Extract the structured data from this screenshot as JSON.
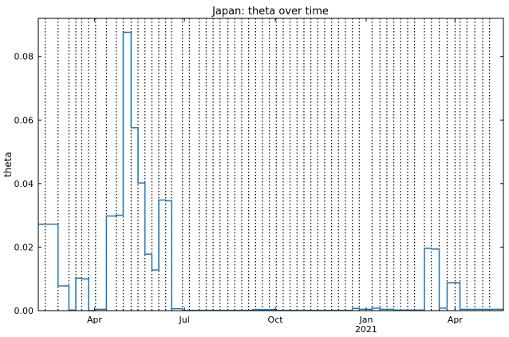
{
  "chart_data": {
    "type": "line",
    "title": "Japan: theta over time",
    "xlabel": "",
    "ylabel": "theta",
    "x_range": [
      "2020-02-04",
      "2021-05-20"
    ],
    "ylim": [
      0,
      0.092
    ],
    "y_ticks": [
      0.0,
      0.02,
      0.04,
      0.06,
      0.08
    ],
    "y_tick_labels": [
      "0.00",
      "0.02",
      "0.04",
      "0.06",
      "0.08"
    ],
    "x_ticks": [
      {
        "date": "2020-04-01",
        "label": "Apr",
        "sublabel": ""
      },
      {
        "date": "2020-07-01",
        "label": "Jul",
        "sublabel": ""
      },
      {
        "date": "2020-10-01",
        "label": "Oct",
        "sublabel": ""
      },
      {
        "date": "2021-01-01",
        "label": "Jan",
        "sublabel": "2021"
      },
      {
        "date": "2021-04-01",
        "label": "Apr",
        "sublabel": ""
      }
    ],
    "grid": false,
    "line_color": "#1f77b4",
    "breakpoint_line_color": "#000000",
    "series": [
      {
        "steps": [
          {
            "start": "2020-02-04",
            "end": "2020-02-24",
            "value": 0.0272
          },
          {
            "start": "2020-02-24",
            "end": "2020-03-06",
            "value": 0.0078
          },
          {
            "start": "2020-03-06",
            "end": "2020-03-13",
            "value": 0.0002
          },
          {
            "start": "2020-03-13",
            "end": "2020-03-19",
            "value": 0.0102
          },
          {
            "start": "2020-03-19",
            "end": "2020-03-26",
            "value": 0.01
          },
          {
            "start": "2020-03-26",
            "end": "2020-04-02",
            "value": 0.0
          },
          {
            "start": "2020-04-02",
            "end": "2020-04-13",
            "value": 0.0004
          },
          {
            "start": "2020-04-13",
            "end": "2020-04-23",
            "value": 0.0298
          },
          {
            "start": "2020-04-23",
            "end": "2020-04-30",
            "value": 0.03
          },
          {
            "start": "2020-04-30",
            "end": "2020-05-08",
            "value": 0.0876
          },
          {
            "start": "2020-05-08",
            "end": "2020-05-15",
            "value": 0.0576
          },
          {
            "start": "2020-05-15",
            "end": "2020-05-22",
            "value": 0.0402
          },
          {
            "start": "2020-05-22",
            "end": "2020-05-29",
            "value": 0.0178
          },
          {
            "start": "2020-05-29",
            "end": "2020-06-05",
            "value": 0.0128
          },
          {
            "start": "2020-06-05",
            "end": "2020-06-12",
            "value": 0.0348
          },
          {
            "start": "2020-06-12",
            "end": "2020-06-18",
            "value": 0.0346
          },
          {
            "start": "2020-06-18",
            "end": "2020-06-29",
            "value": 0.0006
          },
          {
            "start": "2020-06-29",
            "end": "2020-09-08",
            "value": 0.0001
          },
          {
            "start": "2020-09-08",
            "end": "2020-09-30",
            "value": 0.0003
          },
          {
            "start": "2020-09-30",
            "end": "2020-12-18",
            "value": 0.0001
          },
          {
            "start": "2020-12-18",
            "end": "2020-12-25",
            "value": 0.0007
          },
          {
            "start": "2020-12-25",
            "end": "2021-01-07",
            "value": 0.0004
          },
          {
            "start": "2021-01-07",
            "end": "2021-01-15",
            "value": 0.0008
          },
          {
            "start": "2021-01-15",
            "end": "2021-01-29",
            "value": 0.0004
          },
          {
            "start": "2021-01-29",
            "end": "2021-03-01",
            "value": 0.0002
          },
          {
            "start": "2021-03-01",
            "end": "2021-03-08",
            "value": 0.0196
          },
          {
            "start": "2021-03-08",
            "end": "2021-03-16",
            "value": 0.0194
          },
          {
            "start": "2021-03-16",
            "end": "2021-03-24",
            "value": 0.0008
          },
          {
            "start": "2021-03-24",
            "end": "2021-04-01",
            "value": 0.0088
          },
          {
            "start": "2021-04-01",
            "end": "2021-04-06",
            "value": 0.0088
          },
          {
            "start": "2021-04-06",
            "end": "2021-05-20",
            "value": 0.0004
          }
        ]
      }
    ],
    "breakpoints": [
      "2020-02-11",
      "2020-02-24",
      "2020-03-06",
      "2020-03-13",
      "2020-03-19",
      "2020-03-26",
      "2020-04-02",
      "2020-04-13",
      "2020-04-23",
      "2020-04-30",
      "2020-05-08",
      "2020-05-15",
      "2020-05-22",
      "2020-05-29",
      "2020-06-05",
      "2020-06-12",
      "2020-06-18",
      "2020-06-29",
      "2020-07-06",
      "2020-07-16",
      "2020-07-23",
      "2020-07-30",
      "2020-08-06",
      "2020-08-14",
      "2020-08-21",
      "2020-08-28",
      "2020-09-04",
      "2020-09-11",
      "2020-09-18",
      "2020-09-25",
      "2020-10-02",
      "2020-10-09",
      "2020-10-16",
      "2020-10-23",
      "2020-10-30",
      "2020-11-06",
      "2020-11-13",
      "2020-11-20",
      "2020-11-27",
      "2020-12-04",
      "2020-12-11",
      "2020-12-18",
      "2020-12-25",
      "2021-01-07",
      "2021-01-15",
      "2021-01-22",
      "2021-01-29",
      "2021-02-05",
      "2021-02-12",
      "2021-02-19",
      "2021-03-01",
      "2021-03-08",
      "2021-03-16",
      "2021-03-24",
      "2021-04-01",
      "2021-04-06",
      "2021-04-13",
      "2021-04-21",
      "2021-04-29",
      "2021-05-06"
    ]
  }
}
